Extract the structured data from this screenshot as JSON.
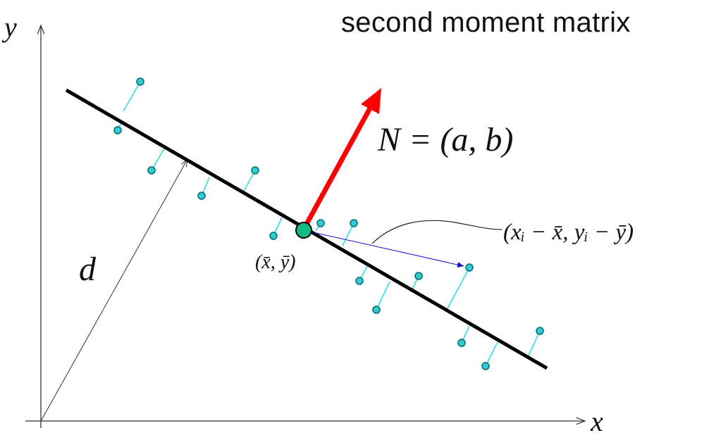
{
  "title": "second moment matrix",
  "labels": {
    "y_axis": "y",
    "x_axis": "x",
    "distance": "d",
    "normal_equation": "N = (a, b)",
    "centroid": "(x̄, ȳ)",
    "offset_vector": "(xᵢ − x̄, yᵢ − ȳ)"
  },
  "colors": {
    "axes": "#333333",
    "fit_line": "#000000",
    "normal_arrow": "#ff0000",
    "residual_segment": "#33dddd",
    "data_point_fill": "#33cccc",
    "data_point_stroke": "#006b80",
    "centroid_fill": "#11bb88",
    "offset_arrow": "#1111cc",
    "distance_arrow": "#333333"
  }
}
